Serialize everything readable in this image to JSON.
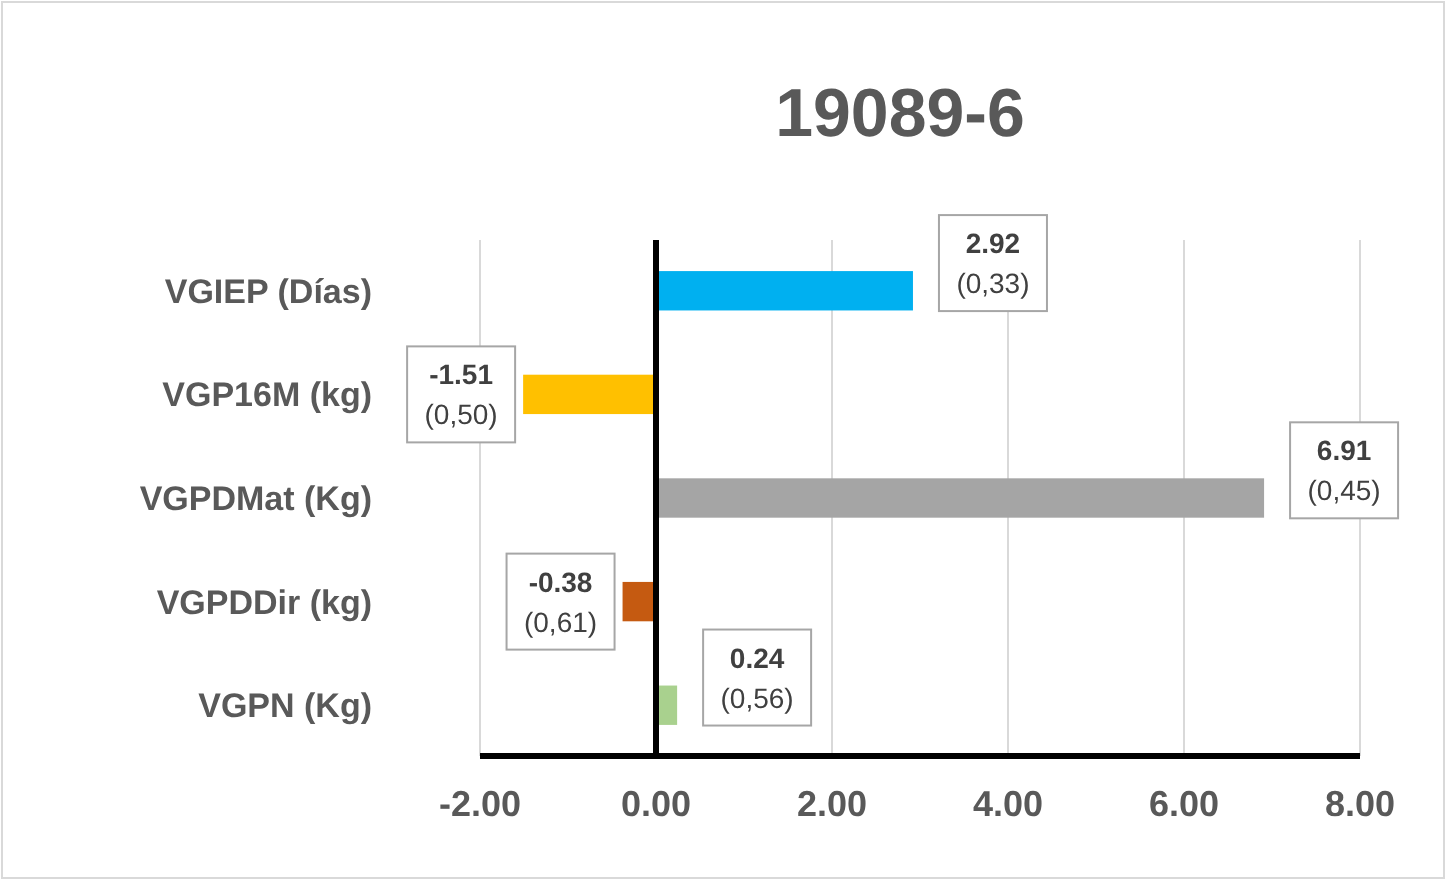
{
  "chart_data": {
    "type": "bar",
    "orientation": "horizontal",
    "title": "19089-6",
    "categories": [
      "VGIEP (Días)",
      "VGP16M (kg)",
      "VGPDMat (Kg)",
      "VGPDDir (kg)",
      "VGPN (Kg)"
    ],
    "values": [
      2.92,
      -1.51,
      6.91,
      -0.38,
      0.24
    ],
    "colors": [
      "#00b0f0",
      "#ffc000",
      "#a5a5a5",
      "#c55a11",
      "#a9d18e"
    ],
    "value_labels": [
      "2.92\n(0,33)",
      "-1.51\n(0,50)",
      "6.91\n(0,45)",
      "-0.38\n(0,61)",
      "0.24\n(0,56)"
    ],
    "xlim": [
      -2,
      8
    ],
    "xticks": [
      {
        "value": -2,
        "label": "-2.00"
      },
      {
        "value": 0,
        "label": "0.00"
      },
      {
        "value": 2,
        "label": "2.00"
      },
      {
        "value": 4,
        "label": "4.00"
      },
      {
        "value": 6,
        "label": "6.00"
      },
      {
        "value": 8,
        "label": "8.00"
      }
    ],
    "grid": "x"
  }
}
